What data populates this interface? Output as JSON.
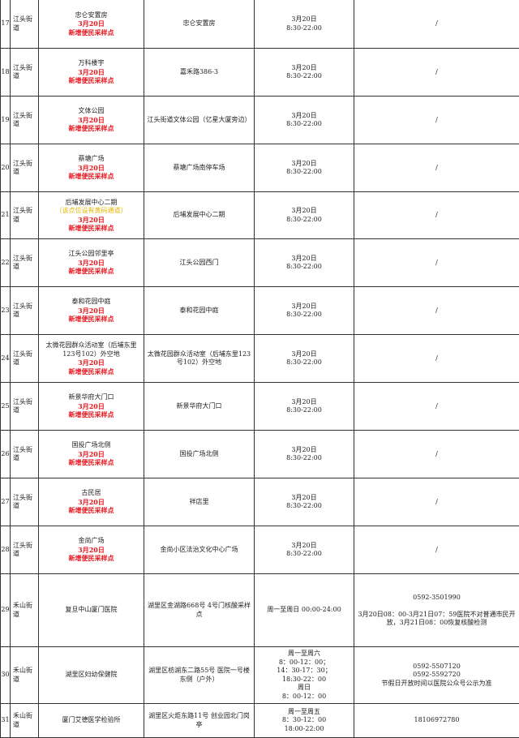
{
  "rows": [
    {
      "no": "17",
      "street": "江头街道",
      "name": "忠仑安置房",
      "date": "3月20日",
      "tag": "新增便民采样点",
      "address": "忠仑安置房",
      "time": [
        "3月20日",
        "8:30-22:00"
      ],
      "note": [
        "/"
      ]
    },
    {
      "no": "18",
      "street": "江头街道",
      "name": "万科楼宇",
      "date": "3月20日",
      "tag": "新增便民采样点",
      "address": "嘉禾路386-3",
      "time": [
        "3月20日",
        "8:30-22:00"
      ],
      "note": [
        "/"
      ]
    },
    {
      "no": "19",
      "street": "江头街道",
      "name": "文体公园",
      "date": "3月20日",
      "tag": "新增便民采样点",
      "address": "江头街道文体公园（亿星大厦旁边）",
      "time": [
        "3月20日",
        "8:30-22:00"
      ],
      "note": [
        "/"
      ]
    },
    {
      "no": "20",
      "street": "江头街道",
      "name": "蔡塘广场",
      "date": "3月20日",
      "tag": "新增便民采样点",
      "address": "蔡塘广场南停车场",
      "time": [
        "3月20日",
        "8:30-22:00"
      ],
      "note": [
        "/"
      ]
    },
    {
      "no": "21",
      "street": "江头街道",
      "name": "后埔发展中心二期",
      "warn": "（该点位设有黄码通道）",
      "date": "3月20日",
      "tag": "新增便民采样点",
      "address": "后埔发展中心二期",
      "time": [
        "3月20日",
        "8:30-22:00"
      ],
      "note": [
        "/"
      ]
    },
    {
      "no": "22",
      "street": "江头街道",
      "name": "江头公园邻里亭",
      "date": "3月20日",
      "tag": "新增便民采样点",
      "address": "江头公园西门",
      "time": [
        "3月20日",
        "8:30-22:00"
      ],
      "note": [
        "/"
      ]
    },
    {
      "no": "23",
      "street": "江头街道",
      "name": "泰和花园中庭",
      "date": "3月20日",
      "tag": "新增便民采样点",
      "address": "泰和花园中庭",
      "time": [
        "3月20日",
        "8:30-22:00"
      ],
      "note": [
        "/"
      ]
    },
    {
      "no": "24",
      "street": "江头街道",
      "name": "太微花园群众活动室（后埔东里123号102）外空地",
      "date": "3月20日",
      "tag": "新增便民采样点",
      "address": "太微花园群众活动室（后埔东里123号102）外空地",
      "time": [
        "3月20日",
        "8:30-22:00"
      ],
      "note": [
        "/"
      ]
    },
    {
      "no": "25",
      "street": "江头街道",
      "name": "新景华府大门口",
      "date": "3月20日",
      "tag": "新增便民采样点",
      "address": "新景华府大门口",
      "time": [
        "3月20日",
        "8:30-22:00"
      ],
      "note": [
        "/"
      ]
    },
    {
      "no": "26",
      "street": "江头街道",
      "name": "国投广场北侧",
      "date": "3月20日",
      "tag": "新增便民采样点",
      "address": "国投广场北侧",
      "time": [
        "3月20日",
        "8:30-22:00"
      ],
      "note": [
        "/"
      ]
    },
    {
      "no": "27",
      "street": "江头街道",
      "name": "古民居",
      "date": "3月20日",
      "tag": "新增便民采样点",
      "address": "祥店里",
      "time": [
        "3月20日",
        "8:30-22:00"
      ],
      "note": [
        "/"
      ]
    },
    {
      "no": "28",
      "street": "江头街道",
      "name": "金尚广场",
      "date": "3月20日",
      "tag": "新增便民采样点",
      "address": "金尚小区法治文化中心广场",
      "time": [
        "3月20日",
        "8:30-22:00"
      ],
      "note": [
        "/"
      ]
    },
    {
      "no": "29",
      "street": "禾山街道",
      "name": "复旦中山厦门医院",
      "address": "湖里区金湖路668号 4号门核酸采样点",
      "time": [
        "周一至周日 00:00-24:00"
      ],
      "note": [
        "0592-3501990",
        "",
        "3月20日08：00-3月21日07：59医院不对普通市民开放，3月21日08：00恢复核酸检测"
      ]
    },
    {
      "no": "30",
      "street": "禾山街道",
      "name": "湖里区妇幼保健院",
      "address": "湖里区枋湖东二路55号 医院一号楼东侧（户外）",
      "time": [
        "周一至周六",
        "8：00-12：00；",
        "14：30-17：30；",
        "18:30-22：00",
        "周日",
        "8：00-12：00"
      ],
      "note": [
        "0592-5507120",
        "0592-5592720",
        "节假日开放时间以医院公众号公示为准"
      ]
    },
    {
      "no": "31",
      "street": "禾山街道",
      "name": "厦门艾德医学检验所",
      "address": "湖里区火炬东路11号 创业园北门岗亭",
      "time": [
        "周一至周五",
        "8：30-12：00",
        "18:00-22:00"
      ],
      "note": [
        "18106972780"
      ]
    }
  ],
  "colors": {
    "tag": "#e8141c",
    "warn": "#e8b400"
  }
}
